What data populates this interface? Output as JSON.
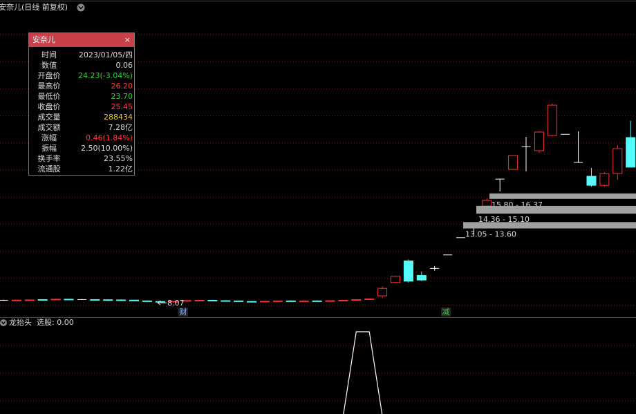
{
  "header": {
    "title": "安奈儿(日线 前复权)"
  },
  "info_panel": {
    "title": "安奈儿",
    "rows": [
      {
        "label": "时间",
        "value": "2023/01/05/四",
        "color": "#dddddd"
      },
      {
        "label": "数值",
        "value": "0.06",
        "color": "#dddddd"
      },
      {
        "label": "开盘价",
        "value": "24.23(-3.04%)",
        "color": "#3cc83c"
      },
      {
        "label": "最高价",
        "value": "26.20",
        "color": "#ff3c3c"
      },
      {
        "label": "最低价",
        "value": "23.70",
        "color": "#3cc83c"
      },
      {
        "label": "收盘价",
        "value": "25.45",
        "color": "#ff3c3c"
      },
      {
        "label": "成交量",
        "value": "288434",
        "color": "#e6c83c"
      },
      {
        "label": "成交额",
        "value": "7.28亿",
        "color": "#dddddd"
      },
      {
        "label": "涨幅",
        "value": "0.46(1.84%)",
        "color": "#ff3c3c"
      },
      {
        "label": "振幅",
        "value": "2.50(10.00%)",
        "color": "#dddddd"
      },
      {
        "label": "换手率",
        "value": "23.55%",
        "color": "#dddddd"
      },
      {
        "label": "流通股",
        "value": "1.22亿",
        "color": "#dddddd"
      }
    ]
  },
  "chart": {
    "type": "candlestick",
    "log_scale": true,
    "ylim": [
      7.35,
      52.3
    ],
    "up_color": "#ff3232",
    "down_color": "#54fcfc",
    "flat_color": "#ffffff",
    "candles": [
      {
        "o": 8.2,
        "h": 8.24,
        "l": 8.18,
        "c": 8.2
      },
      {
        "o": 8.2,
        "h": 8.23,
        "l": 8.17,
        "c": 8.21
      },
      {
        "o": 8.21,
        "h": 8.26,
        "l": 8.19,
        "c": 8.22
      },
      {
        "o": 8.24,
        "h": 8.26,
        "l": 8.2,
        "c": 8.21
      },
      {
        "o": 8.25,
        "h": 8.28,
        "l": 8.22,
        "c": 8.26
      },
      {
        "o": 8.26,
        "h": 8.28,
        "l": 8.22,
        "c": 8.24
      },
      {
        "o": 8.24,
        "h": 8.27,
        "l": 8.22,
        "c": 8.24
      },
      {
        "o": 8.24,
        "h": 8.26,
        "l": 8.21,
        "c": 8.23
      },
      {
        "o": 8.23,
        "h": 8.26,
        "l": 8.21,
        "c": 8.22
      },
      {
        "o": 8.22,
        "h": 8.25,
        "l": 8.2,
        "c": 8.21
      },
      {
        "o": 8.21,
        "h": 8.23,
        "l": 8.16,
        "c": 8.17
      },
      {
        "o": 8.17,
        "h": 8.2,
        "l": 8.12,
        "c": 8.14
      },
      {
        "o": 8.14,
        "h": 8.17,
        "l": 8.09,
        "c": 8.12
      },
      {
        "o": 8.12,
        "h": 8.16,
        "l": 8.07,
        "c": 8.15
      },
      {
        "o": 8.15,
        "h": 8.21,
        "l": 8.13,
        "c": 8.19
      },
      {
        "o": 8.19,
        "h": 8.22,
        "l": 8.16,
        "c": 8.2
      },
      {
        "o": 8.2,
        "h": 8.23,
        "l": 8.17,
        "c": 8.18
      },
      {
        "o": 8.18,
        "h": 8.21,
        "l": 8.15,
        "c": 8.17
      },
      {
        "o": 8.17,
        "h": 8.19,
        "l": 8.13,
        "c": 8.14
      },
      {
        "o": 8.14,
        "h": 8.17,
        "l": 8.12,
        "c": 8.13
      },
      {
        "o": 8.13,
        "h": 8.17,
        "l": 8.11,
        "c": 8.15
      },
      {
        "o": 8.15,
        "h": 8.19,
        "l": 8.13,
        "c": 8.17
      },
      {
        "o": 8.17,
        "h": 8.2,
        "l": 8.14,
        "c": 8.16
      },
      {
        "o": 8.16,
        "h": 8.19,
        "l": 8.14,
        "c": 8.17
      },
      {
        "o": 8.17,
        "h": 8.2,
        "l": 8.15,
        "c": 8.16
      },
      {
        "o": 8.16,
        "h": 8.19,
        "l": 8.14,
        "c": 8.18
      },
      {
        "o": 8.18,
        "h": 8.22,
        "l": 8.16,
        "c": 8.2
      },
      {
        "o": 8.2,
        "h": 8.26,
        "l": 8.18,
        "c": 8.24
      },
      {
        "o": 8.24,
        "h": 8.3,
        "l": 8.22,
        "c": 8.28
      },
      {
        "o": 8.44,
        "h": 8.97,
        "l": 8.32,
        "c": 8.86
      },
      {
        "o": 9.2,
        "h": 9.62,
        "l": 9.16,
        "c": 9.58
      },
      {
        "o": 10.58,
        "h": 10.68,
        "l": 9.2,
        "c": 9.28
      },
      {
        "o": 9.63,
        "h": 9.88,
        "l": 9.28,
        "c": 9.35
      },
      {
        "o": 10.08,
        "h": 10.23,
        "l": 9.93,
        "c": 10.08
      },
      {
        "o": 11.0,
        "h": 11.0,
        "l": 11.0,
        "c": 11.0
      },
      {
        "o": 12.3,
        "h": 12.3,
        "l": 12.3,
        "c": 12.3
      },
      {
        "o": 13.3,
        "h": 13.5,
        "l": 12.5,
        "c": 13.3
      },
      {
        "o": 15.09,
        "h": 15.85,
        "l": 15.09,
        "c": 15.64
      },
      {
        "o": 17.96,
        "h": 17.96,
        "l": 16.58,
        "c": 17.96
      },
      {
        "o": 19.12,
        "h": 20.91,
        "l": 19.12,
        "c": 20.91
      },
      {
        "o": 22.16,
        "h": 23.6,
        "l": 18.87,
        "c": 22.16
      },
      {
        "o": 21.58,
        "h": 24.46,
        "l": 21.3,
        "c": 24.35
      },
      {
        "o": 23.81,
        "h": 29.3,
        "l": 23.7,
        "c": 28.98
      },
      {
        "o": 24.0,
        "h": 24.0,
        "l": 24.0,
        "c": 24.0
      },
      {
        "o": 20.0,
        "h": 24.46,
        "l": 20.0,
        "c": 20.0
      },
      {
        "o": 18.29,
        "h": 19.3,
        "l": 17.1,
        "c": 17.25
      },
      {
        "o": 17.25,
        "h": 18.8,
        "l": 17.1,
        "c": 18.6
      },
      {
        "o": 18.62,
        "h": 22.36,
        "l": 17.9,
        "c": 21.87
      },
      {
        "o": 23.5,
        "h": 26.2,
        "l": 19.4,
        "c": 19.4
      }
    ],
    "low_marker": 8.07,
    "zones": [
      {
        "low": 15.8,
        "high": 16.37,
        "label": "15.80 - 16.37"
      },
      {
        "low": 14.36,
        "high": 15.1,
        "label": "14.36 - 15.10"
      },
      {
        "low": 13.05,
        "high": 13.6,
        "label": "13.05 - 13.60"
      }
    ],
    "zone_color": "#a0a0a0",
    "markers": [
      {
        "text": "财",
        "color": "#8cb4ff"
      },
      {
        "text": "减",
        "color": "#3cc83c"
      }
    ]
  },
  "indicator": {
    "name": "龙抬头",
    "readout": "选股: 0.00",
    "ylim": [
      0,
      1
    ],
    "color": "#ffffff",
    "values": [
      0,
      0,
      0,
      0,
      0,
      0,
      0,
      0,
      0,
      0,
      0,
      0,
      0,
      0,
      0,
      0,
      0,
      0,
      0,
      0,
      0,
      0,
      0,
      0,
      0,
      0,
      0,
      1,
      1,
      0,
      0,
      0,
      0,
      0,
      0,
      0,
      0,
      0,
      0,
      0,
      0,
      0,
      0,
      0,
      0,
      0,
      0,
      0,
      0
    ]
  }
}
